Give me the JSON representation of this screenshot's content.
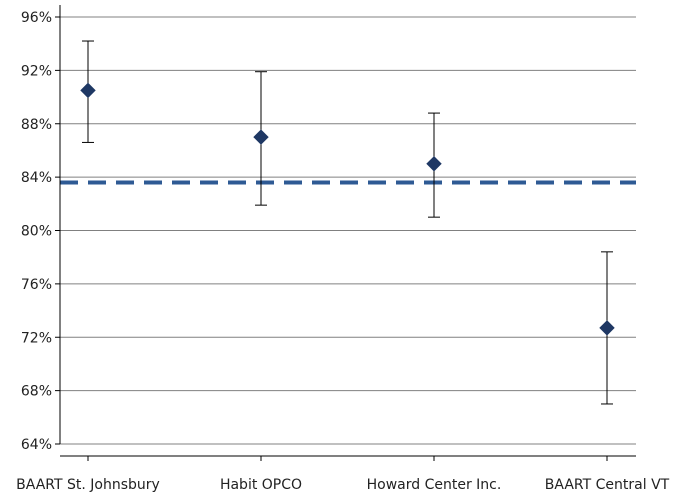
{
  "chart_data": {
    "type": "scatter",
    "title": "",
    "xlabel": "",
    "ylabel": "",
    "categories": [
      "BAART St. Johnsbury",
      "Habit OPCO",
      "Howard Center Inc.",
      "BAART Central VT"
    ],
    "values": [
      90.5,
      87.0,
      85.0,
      72.7
    ],
    "error_low": [
      86.6,
      81.9,
      81.0,
      67.0
    ],
    "error_high": [
      94.2,
      91.9,
      88.8,
      78.4
    ],
    "reference_line": 83.6,
    "ylim": [
      64,
      96
    ],
    "yticks": [
      64,
      68,
      72,
      76,
      80,
      84,
      88,
      92,
      96
    ],
    "ytick_labels": [
      "64%",
      "68%",
      "72%",
      "76%",
      "80%",
      "84%",
      "88%",
      "92%",
      "96%"
    ],
    "grid": true,
    "legend": "none",
    "colors": {
      "marker": "#1f3864",
      "reference_line": "#2e5a94",
      "error_bar": "#000000",
      "grid": "#808080",
      "axis": "#000000"
    }
  }
}
